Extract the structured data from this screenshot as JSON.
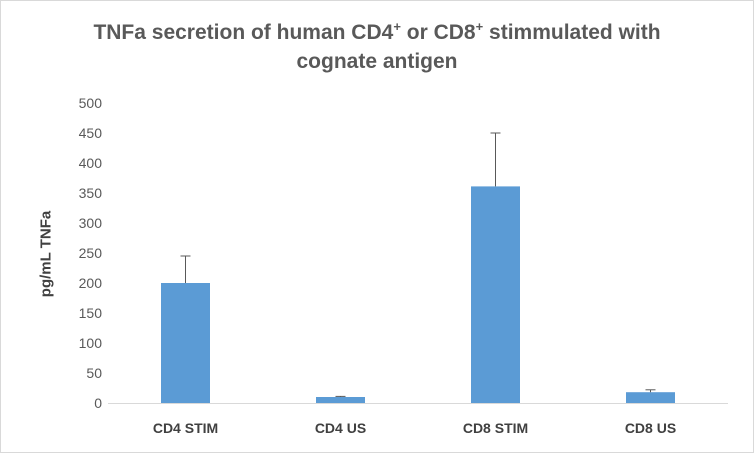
{
  "chart_data": {
    "type": "bar",
    "title_main": "TNFa secretion of human CD4",
    "title_sup1": "+",
    "title_mid": " or CD8",
    "title_sup2": "+",
    "title_end": " stimmulated with",
    "title_line2": "cognate antigen",
    "ylabel": "pg/mL TNFa",
    "xlabel": "",
    "categories": [
      "CD4 STIM",
      "CD4 US",
      "CD8 STIM",
      "CD8 US"
    ],
    "values": [
      200,
      10,
      361,
      18
    ],
    "error_plus": [
      45,
      1,
      89,
      4
    ],
    "ylim": [
      0,
      500
    ],
    "yticks": [
      0,
      50,
      100,
      150,
      200,
      250,
      300,
      350,
      400,
      450,
      500
    ],
    "ytick_labels": [
      "0",
      "50",
      "100",
      "150",
      "200",
      "250",
      "300",
      "350",
      "400",
      "450",
      "500"
    ],
    "grid": false,
    "bar_color": "#5b9bd5",
    "error_color": "#595959",
    "axis_color": "#d9d9d9"
  }
}
